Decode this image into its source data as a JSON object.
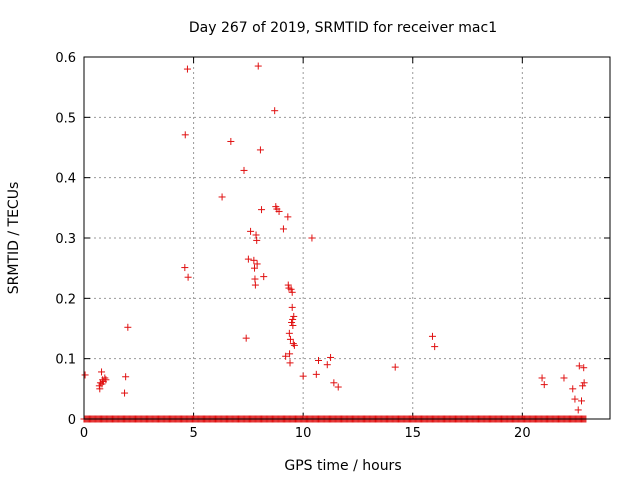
{
  "chart_data": {
    "type": "scatter",
    "title": "Day 267 of 2019, SRMTID for receiver mac1",
    "xlabel": "GPS time / hours",
    "ylabel": "SRMTID / TECUs",
    "xlim": [
      0,
      24
    ],
    "ylim": [
      0,
      0.6
    ],
    "xticks": [
      0,
      5,
      10,
      15,
      20
    ],
    "yticks": [
      0,
      0.1,
      0.2,
      0.3,
      0.4,
      0.5,
      0.6
    ],
    "xtick_labels": [
      "0",
      "5",
      "10",
      "15",
      "20"
    ],
    "ytick_labels": [
      "0",
      "0.1",
      "0.2",
      "0.3",
      "0.4",
      "0.5",
      "0.6"
    ],
    "grid": true,
    "series_color": "#e01010",
    "zero_band": {
      "x_start": 0.0,
      "x_end": 22.9,
      "step": 0.05,
      "y": 0
    },
    "points": [
      [
        0.05,
        0.073
      ],
      [
        0.7,
        0.055
      ],
      [
        0.72,
        0.05
      ],
      [
        0.75,
        0.06
      ],
      [
        0.8,
        0.078
      ],
      [
        0.82,
        0.058
      ],
      [
        0.85,
        0.065
      ],
      [
        0.88,
        0.062
      ],
      [
        0.95,
        0.068
      ],
      [
        1.0,
        0.065
      ],
      [
        1.85,
        0.043
      ],
      [
        1.9,
        0.07
      ],
      [
        2.0,
        0.152
      ],
      [
        4.6,
        0.251
      ],
      [
        4.62,
        0.471
      ],
      [
        4.72,
        0.58
      ],
      [
        4.75,
        0.235
      ],
      [
        6.3,
        0.368
      ],
      [
        6.7,
        0.46
      ],
      [
        7.3,
        0.412
      ],
      [
        7.4,
        0.134
      ],
      [
        7.5,
        0.265
      ],
      [
        7.6,
        0.311
      ],
      [
        7.75,
        0.263
      ],
      [
        7.78,
        0.25
      ],
      [
        7.8,
        0.232
      ],
      [
        7.82,
        0.222
      ],
      [
        7.85,
        0.305
      ],
      [
        7.88,
        0.296
      ],
      [
        7.9,
        0.257
      ],
      [
        7.95,
        0.585
      ],
      [
        8.05,
        0.446
      ],
      [
        8.1,
        0.347
      ],
      [
        8.2,
        0.236
      ],
      [
        8.7,
        0.511
      ],
      [
        8.75,
        0.352
      ],
      [
        8.8,
        0.348
      ],
      [
        8.9,
        0.344
      ],
      [
        9.1,
        0.315
      ],
      [
        9.2,
        0.104
      ],
      [
        9.3,
        0.335
      ],
      [
        9.32,
        0.222
      ],
      [
        9.35,
        0.217
      ],
      [
        9.37,
        0.142
      ],
      [
        9.38,
        0.108
      ],
      [
        9.4,
        0.093
      ],
      [
        9.42,
        0.132
      ],
      [
        9.45,
        0.215
      ],
      [
        9.47,
        0.16
      ],
      [
        9.5,
        0.185
      ],
      [
        9.5,
        0.21
      ],
      [
        9.52,
        0.165
      ],
      [
        9.53,
        0.155
      ],
      [
        9.55,
        0.125
      ],
      [
        9.57,
        0.17
      ],
      [
        9.6,
        0.122
      ],
      [
        10.0,
        0.071
      ],
      [
        10.4,
        0.3
      ],
      [
        10.6,
        0.074
      ],
      [
        10.7,
        0.097
      ],
      [
        11.1,
        0.09
      ],
      [
        11.25,
        0.102
      ],
      [
        11.4,
        0.06
      ],
      [
        11.6,
        0.053
      ],
      [
        14.2,
        0.086
      ],
      [
        15.9,
        0.137
      ],
      [
        16.0,
        0.12
      ],
      [
        20.9,
        0.068
      ],
      [
        21.0,
        0.057
      ],
      [
        21.9,
        0.068
      ],
      [
        22.3,
        0.05
      ],
      [
        22.4,
        0.033
      ],
      [
        22.55,
        0.015
      ],
      [
        22.6,
        0.088
      ],
      [
        22.7,
        0.03
      ],
      [
        22.75,
        0.055
      ],
      [
        22.8,
        0.085
      ],
      [
        22.82,
        0.06
      ]
    ]
  }
}
